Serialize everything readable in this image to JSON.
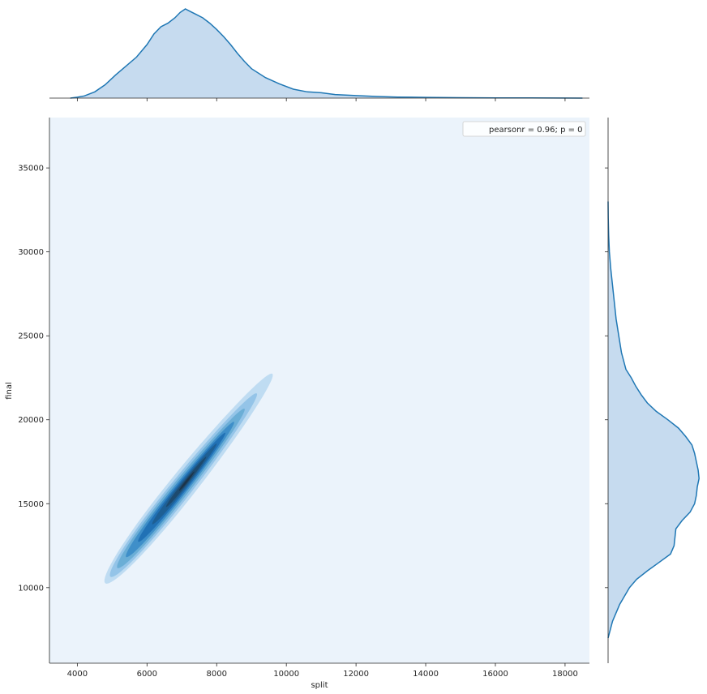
{
  "chart_data": {
    "type": "jointplot-kde",
    "xlabel": "split",
    "ylabel": "final",
    "xlim": [
      3200,
      18700
    ],
    "ylim": [
      5500,
      38000
    ],
    "x_ticks": [
      4000,
      6000,
      8000,
      10000,
      12000,
      14000,
      16000,
      18000
    ],
    "y_ticks": [
      10000,
      15000,
      20000,
      25000,
      30000,
      35000
    ],
    "legend": {
      "text": "pearsonr = 0.96; p = 0",
      "placement": "upper right"
    },
    "stats": {
      "pearsonr": 0.96,
      "p": 0
    },
    "colors": {
      "line": "#1f77b4",
      "marginal_fill": "#c6dbef",
      "plot_background": "#ebf3fb",
      "contour_levels": [
        "#bfdcf2",
        "#94c4e8",
        "#6baed6",
        "#3f8fc9",
        "#2171b5",
        "#1e5f94",
        "#1e4a6e",
        "#1d3448"
      ]
    },
    "joint_contours": {
      "center": {
        "x": 7200,
        "y": 16500
      },
      "slope_final_per_split": 2.6,
      "levels": [
        {
          "t_min": -2400,
          "t_max": 2400,
          "half_width": 380
        },
        {
          "t_min": -2250,
          "t_max": 1950,
          "half_width": 300
        },
        {
          "t_min": -2050,
          "t_max": 1600,
          "half_width": 240
        },
        {
          "t_min": -1800,
          "t_max": 1300,
          "half_width": 185
        },
        {
          "t_min": -1450,
          "t_max": 1050,
          "half_width": 140
        },
        {
          "t_min": -1050,
          "t_max": 800,
          "half_width": 100
        },
        {
          "t_min": -650,
          "t_max": 500,
          "half_width": 62
        },
        {
          "t_min": -280,
          "t_max": 160,
          "half_width": 30
        }
      ]
    },
    "marginal_x": {
      "x": [
        3800,
        4000,
        4200,
        4500,
        4800,
        5100,
        5400,
        5700,
        6000,
        6200,
        6400,
        6600,
        6800,
        6950,
        7100,
        7250,
        7400,
        7600,
        7800,
        8000,
        8200,
        8400,
        8600,
        8800,
        9000,
        9400,
        9800,
        10200,
        10600,
        11000,
        11400,
        12000,
        12600,
        13200,
        14000,
        15000,
        16000,
        17000,
        18500
      ],
      "density": [
        0.0,
        0.01,
        0.025,
        0.07,
        0.15,
        0.26,
        0.36,
        0.46,
        0.6,
        0.72,
        0.8,
        0.84,
        0.9,
        0.96,
        1.0,
        0.97,
        0.94,
        0.9,
        0.84,
        0.77,
        0.69,
        0.6,
        0.5,
        0.41,
        0.33,
        0.23,
        0.16,
        0.1,
        0.07,
        0.06,
        0.04,
        0.028,
        0.018,
        0.012,
        0.008,
        0.005,
        0.003,
        0.002,
        0.0
      ]
    },
    "marginal_y": {
      "y": [
        7000,
        8000,
        9000,
        10000,
        10500,
        11000,
        11500,
        12000,
        12500,
        13000,
        13500,
        14000,
        14500,
        15000,
        15500,
        16000,
        16500,
        17000,
        17500,
        18000,
        18500,
        19000,
        19500,
        20000,
        20500,
        21000,
        21500,
        22000,
        22500,
        23000,
        24000,
        25000,
        26000,
        27000,
        28000,
        29000,
        30000,
        31000,
        32000,
        33000
      ],
      "density": [
        0.0,
        0.05,
        0.13,
        0.24,
        0.32,
        0.44,
        0.57,
        0.7,
        0.74,
        0.75,
        0.76,
        0.83,
        0.92,
        0.97,
        0.99,
        1.0,
        1.02,
        1.01,
        0.99,
        0.97,
        0.94,
        0.87,
        0.79,
        0.67,
        0.54,
        0.44,
        0.37,
        0.31,
        0.26,
        0.2,
        0.15,
        0.12,
        0.09,
        0.07,
        0.05,
        0.03,
        0.015,
        0.006,
        0.002,
        0.0
      ]
    }
  }
}
